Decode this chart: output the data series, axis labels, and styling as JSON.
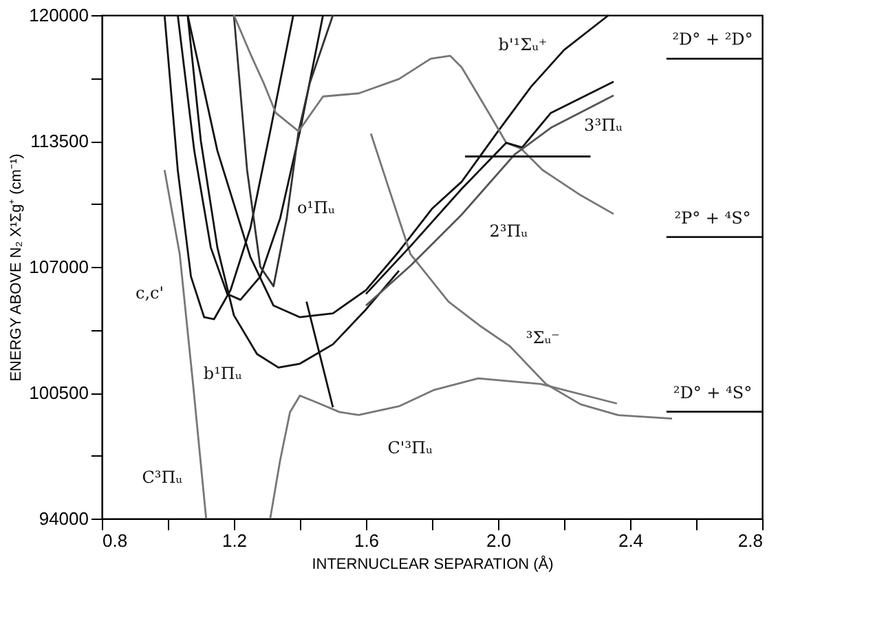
{
  "chart_data": {
    "type": "line",
    "xlabel": "INTERNUCLEAR SEPARATION (Å)",
    "ylabel": "ENERGY ABOVE N₂ X¹Σg⁺ (cm⁻¹)",
    "xlim": [
      0.8,
      2.8
    ],
    "xticks": [
      0.8,
      {
        "value": 1.0,
        "label": null
      },
      1.2,
      {
        "value": 1.4,
        "label": null
      },
      1.6,
      {
        "value": 1.8,
        "label": null
      },
      {
        "value": 2.0,
        "label": "2.0"
      },
      {
        "value": 2.2,
        "label": null
      },
      2.4,
      {
        "value": 2.6,
        "label": null
      },
      2.8
    ],
    "ylim": [
      94000,
      120000
    ],
    "yticks": [
      94000,
      {
        "value": 97250,
        "label": null
      },
      100500,
      {
        "value": 103750,
        "label": null
      },
      107000,
      {
        "value": 110250,
        "label": null
      },
      113500,
      {
        "value": 116750,
        "label": null
      },
      120000
    ],
    "grid": false,
    "legend": false,
    "line_style": "solid",
    "marker": "none",
    "series": [
      {
        "color": "#111111",
        "x": [
          0.99,
          1.03,
          1.07,
          1.11,
          1.14,
          1.19,
          1.25,
          1.31,
          1.38
        ],
        "values": [
          120000,
          112000,
          106500,
          104400,
          104300,
          105800,
          109000,
          114000,
          120000
        ]
      },
      {
        "color": "#111111",
        "x": [
          1.03,
          1.08,
          1.13,
          1.18,
          1.22,
          1.28,
          1.34,
          1.4,
          1.47
        ],
        "values": [
          120000,
          113000,
          108000,
          105600,
          105300,
          106500,
          109500,
          114000,
          120000
        ]
      },
      {
        "color": "#111111",
        "x": [
          1.06,
          1.1,
          1.15,
          1.2,
          1.27,
          1.335,
          1.4,
          1.5,
          1.6,
          1.7
        ],
        "values": [
          120000,
          113500,
          108000,
          104500,
          102500,
          101800,
          102000,
          103000,
          104800,
          106800
        ]
      },
      {
        "color": "#111111",
        "x": [
          1.06,
          1.15,
          1.25,
          1.32,
          1.4,
          1.5,
          1.6,
          1.7,
          1.8,
          1.89,
          2.0,
          2.1,
          2.2,
          2.335
        ],
        "values": [
          120000,
          113000,
          107500,
          105000,
          104400,
          104600,
          105800,
          107800,
          110000,
          111400,
          114000,
          116300,
          118200,
          120000
        ]
      },
      {
        "color": "#333333",
        "x": [
          1.2,
          1.24,
          1.28,
          1.32,
          1.36,
          1.396,
          1.43,
          1.5
        ],
        "values": [
          120000,
          112000,
          107000,
          106000,
          109500,
          114000,
          116500,
          120000
        ]
      },
      {
        "color": "#777777",
        "x": [
          0.99,
          1.036,
          1.076,
          1.116
        ],
        "values": [
          112000,
          107650,
          101000,
          94000
        ]
      },
      {
        "color": "#777777",
        "x": [
          1.31,
          1.34,
          1.37,
          1.4,
          1.45,
          1.52,
          1.578,
          1.7,
          1.807,
          1.94,
          2.13,
          2.36
        ],
        "values": [
          94000,
          97000,
          99500,
          100350,
          100000,
          99500,
          99350,
          99800,
          100650,
          101240,
          100950,
          99940
        ]
      },
      {
        "color": "#777777",
        "x": [
          1.615,
          1.68,
          1.735,
          1.85,
          1.95,
          2.036,
          2.145,
          2.25,
          2.364,
          2.527
        ],
        "values": [
          113880,
          110500,
          107650,
          105200,
          103900,
          102900,
          100950,
          99900,
          99340,
          99160
        ]
      },
      {
        "color": "#777777",
        "x": [
          1.2,
          1.25,
          1.29,
          1.327,
          1.396,
          1.47,
          1.578,
          1.7,
          1.796,
          1.855,
          1.89,
          1.978,
          2.025,
          2.07,
          2.135,
          2.25,
          2.35
        ],
        "values": [
          120000,
          118000,
          116500,
          114950,
          114000,
          115800,
          115960,
          116700,
          117750,
          117900,
          117300,
          114780,
          113400,
          113100,
          112000,
          110700,
          109730
        ]
      },
      {
        "color": "#111111",
        "x": [
          1.6,
          1.735,
          1.89,
          2.025,
          2.073,
          2.16,
          2.35
        ],
        "values": [
          105600,
          108070,
          111030,
          113410,
          113170,
          114950,
          116560
        ]
      },
      {
        "color": "#555555",
        "x": [
          1.6,
          1.735,
          1.89,
          2.05,
          2.16,
          2.35
        ],
        "values": [
          105000,
          107060,
          109700,
          112800,
          114180,
          115850
        ]
      },
      {
        "color": "#111111",
        "x": [
          1.9,
          2.28
        ],
        "values": [
          112700,
          112700
        ]
      },
      {
        "color": "#111111",
        "x": [
          1.42,
          1.5
        ],
        "values": [
          105200,
          99750
        ]
      },
      {
        "color": "#111111",
        "x": [
          2.51,
          2.8
        ],
        "values": [
          117750,
          117750
        ]
      },
      {
        "color": "#111111",
        "x": [
          2.51,
          2.8
        ],
        "values": [
          108540,
          108540
        ]
      },
      {
        "color": "#111111",
        "x": [
          2.51,
          2.8
        ],
        "values": [
          99520,
          99520
        ]
      }
    ],
    "annotations": [
      {
        "text": "b'¹Σᵤ⁺",
        "x": 2.2,
        "y": 118200
      },
      {
        "text": "3³Πᵤ",
        "x": 2.16,
        "y": 114950
      },
      {
        "text": "o¹Πᵤ",
        "x": 1.34,
        "y": 109500
      },
      {
        "text": "2³Πᵤ",
        "x": 1.89,
        "y": 109700
      },
      {
        "text": "³Σᵤ⁻",
        "x": 2.036,
        "y": 102900
      },
      {
        "text": "c,c'",
        "x": 1.07,
        "y": 106500
      },
      {
        "text": "b¹Πᵤ",
        "x": 1.27,
        "y": 102500
      },
      {
        "text": "C³Πᵤ",
        "x": 1.116,
        "y": 94000
      },
      {
        "text": "C'³Πᵤ",
        "x": 1.7,
        "y": 99800
      },
      {
        "text": "²D° + ²D°",
        "x": 2.65,
        "y": 117750
      },
      {
        "text": "²P° + ⁴S°",
        "x": 2.65,
        "y": 108540
      },
      {
        "text": "²D° + ⁴S°",
        "x": 2.65,
        "y": 99520
      }
    ]
  }
}
